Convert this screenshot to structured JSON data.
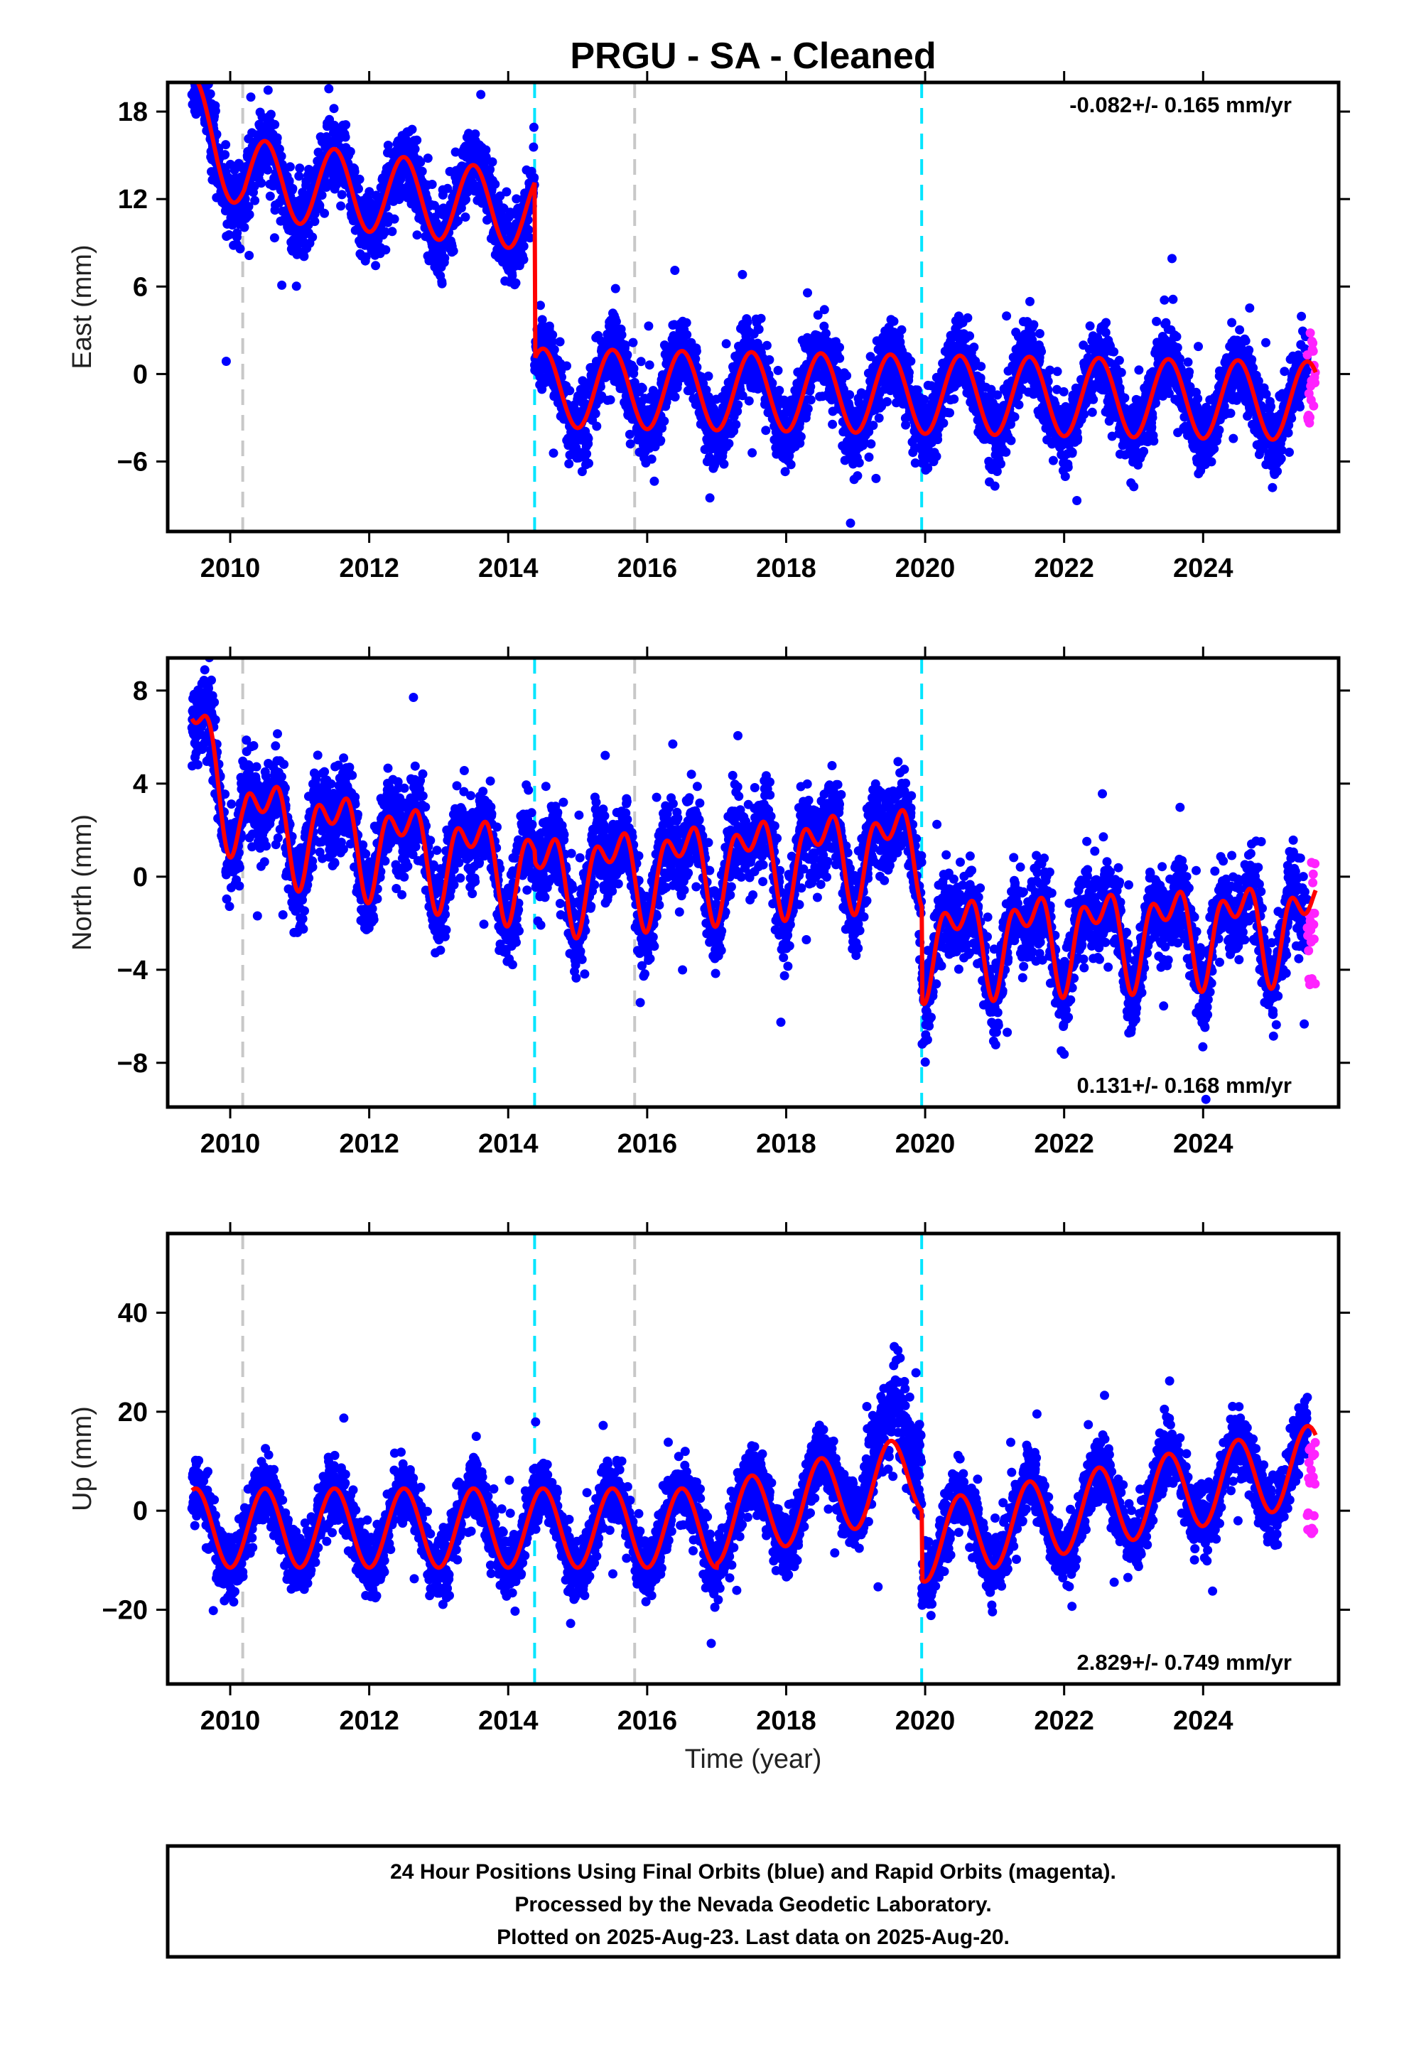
{
  "title": "PRGU  - SA - Cleaned",
  "xlabel": "Time (year)",
  "footer": {
    "lines": [
      "24 Hour Positions Using Final Orbits (blue) and Rapid Orbits (magenta).",
      "Processed by the Nevada Geodetic Laboratory.",
      "Plotted on 2025-Aug-23. Last data on 2025-Aug-20."
    ]
  },
  "colors": {
    "final_orbits": "#0000ff",
    "rapid_orbits": "#ff22ff",
    "model": "#ff0000",
    "antenna_change": "#c8c8c8",
    "equipment_change": "#00e5ff"
  },
  "chart_data": [
    {
      "type": "scatter",
      "name": "east",
      "ylabel": "East (mm)",
      "rate_text": "-0.082+/- 0.165 mm/yr",
      "rate_position": "top-right",
      "xlim": [
        2009.1,
        2025.95
      ],
      "ylim": [
        -10.8,
        20
      ],
      "xticks": [
        2010,
        2012,
        2014,
        2016,
        2018,
        2020,
        2022,
        2024
      ],
      "xtick_labels": [
        "2010",
        "2012",
        "2014",
        "2016",
        "2018",
        "2020",
        "2022",
        "2024"
      ],
      "yticks": [
        -6,
        0,
        6,
        12,
        18
      ],
      "ytick_labels": [
        "−6",
        "0",
        "6",
        "12",
        "18"
      ],
      "offsets": [
        {
          "year": 2014.38,
          "value": -11.5
        }
      ],
      "segment_means": [
        {
          "start": 2009.45,
          "end": 2014.38,
          "mean": 12.5,
          "trend": -0.55
        },
        {
          "start": 2014.38,
          "end": 2025.62,
          "mean": -1.4,
          "trend": -0.08
        }
      ],
      "seasonal_amplitude": 2.7,
      "scatter": 2.2,
      "rapid_points": {
        "start": 2025.5,
        "end": 2025.62,
        "min": -3.8,
        "max": 3.2
      },
      "vlines": [
        {
          "year": 2010.18,
          "kind": "antenna"
        },
        {
          "year": 2014.38,
          "kind": "equipment"
        },
        {
          "year": 2015.82,
          "kind": "antenna"
        },
        {
          "year": 2019.95,
          "kind": "equipment"
        }
      ]
    },
    {
      "type": "scatter",
      "name": "north",
      "ylabel": "North (mm)",
      "rate_text": "0.131+/- 0.168 mm/yr",
      "rate_position": "bottom-right",
      "xlim": [
        2009.1,
        2025.95
      ],
      "ylim": [
        -9.9,
        9.4
      ],
      "xticks": [
        2010,
        2012,
        2014,
        2016,
        2018,
        2020,
        2022,
        2024
      ],
      "xtick_labels": [
        "2010",
        "2012",
        "2014",
        "2016",
        "2018",
        "2020",
        "2022",
        "2024"
      ],
      "yticks": [
        -8,
        -4,
        0,
        4,
        8
      ],
      "ytick_labels": [
        "−8",
        "−4",
        "0",
        "4",
        "8"
      ],
      "offsets": [
        {
          "year": 2014.38,
          "value": -1.8
        },
        {
          "year": 2019.95,
          "value": -3.6
        }
      ],
      "segment_means": [
        {
          "start": 2009.45,
          "end": 2014.38,
          "mean": 1.6,
          "trend": -0.5
        },
        {
          "start": 2014.38,
          "end": 2019.95,
          "mean": 0.6,
          "trend": 0.25
        },
        {
          "start": 2019.95,
          "end": 2025.62,
          "mean": -2.4,
          "trend": 0.13
        }
      ],
      "seasonal_amplitude": 1.6,
      "scatter": 1.6,
      "rapid_points": {
        "start": 2025.5,
        "end": 2025.62,
        "min": -4.8,
        "max": 1.0
      },
      "vlines": [
        {
          "year": 2010.18,
          "kind": "antenna"
        },
        {
          "year": 2014.38,
          "kind": "equipment"
        },
        {
          "year": 2015.82,
          "kind": "antenna"
        },
        {
          "year": 2019.95,
          "kind": "equipment"
        }
      ]
    },
    {
      "type": "scatter",
      "name": "up",
      "ylabel": "Up (mm)",
      "rate_text": "2.829+/- 0.749 mm/yr",
      "rate_position": "bottom-right",
      "xlim": [
        2009.1,
        2025.95
      ],
      "ylim": [
        -35,
        56
      ],
      "xticks": [
        2010,
        2012,
        2014,
        2016,
        2018,
        2020,
        2022,
        2024
      ],
      "xtick_labels": [
        "2010",
        "2012",
        "2014",
        "2016",
        "2018",
        "2020",
        "2022",
        "2024"
      ],
      "yticks": [
        -20,
        0,
        20,
        40
      ],
      "ytick_labels": [
        "−20",
        "0",
        "20",
        "40"
      ],
      "offsets": [
        {
          "year": 2019.95,
          "value": -12
        }
      ],
      "segment_means": [
        {
          "start": 2009.45,
          "end": 2017.0,
          "mean": -3.5,
          "trend": 0.0
        },
        {
          "start": 2017.0,
          "end": 2019.95,
          "mean": 2.5,
          "trend": 3.5
        },
        {
          "start": 2019.95,
          "end": 2025.62,
          "mean": 1.5,
          "trend": 2.8
        }
      ],
      "seasonal_amplitude": 8,
      "scatter": 5.5,
      "rapid_points": {
        "start": 2025.5,
        "end": 2025.62,
        "min": -5,
        "max": 14
      },
      "vlines": [
        {
          "year": 2010.18,
          "kind": "antenna"
        },
        {
          "year": 2014.38,
          "kind": "equipment"
        },
        {
          "year": 2015.82,
          "kind": "antenna"
        },
        {
          "year": 2019.95,
          "kind": "equipment"
        }
      ]
    }
  ]
}
